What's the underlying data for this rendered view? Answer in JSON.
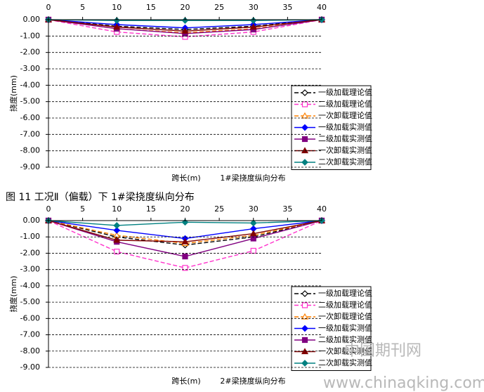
{
  "caption": "图 11 工况Ⅱ（偏载）下 1#梁挠度纵向分布",
  "watermark": [
    "中国期刊网",
    "www.chinaqking.com"
  ],
  "chart_data": [
    {
      "type": "line",
      "x_label": "跨长(m)",
      "subtitle": "1#梁挠度纵向分布",
      "y_label": "挠度(mm)",
      "x": [
        0,
        10,
        20,
        30,
        40
      ],
      "xlim": [
        0,
        40
      ],
      "xticks": [
        0,
        5,
        10,
        15,
        20,
        25,
        30,
        35,
        40
      ],
      "ylim": [
        -9,
        0
      ],
      "yticks": [
        {
          "value": 0,
          "label": "0.00"
        },
        {
          "value": -1,
          "label": "-1.00"
        },
        {
          "value": -2,
          "label": "-2.00"
        },
        {
          "value": -3,
          "label": "-3.00"
        },
        {
          "value": -4,
          "label": "-4.00"
        },
        {
          "value": -5,
          "label": "-5.00"
        },
        {
          "value": -6,
          "label": "-6.00"
        },
        {
          "value": -7,
          "label": "-7.00"
        },
        {
          "value": -8,
          "label": "-8.00"
        },
        {
          "value": -9,
          "label": "-9.00"
        }
      ],
      "grid": true,
      "legend": "lower right",
      "series": [
        {
          "name": "一级加载理论值",
          "color": "#000000",
          "dashed": true,
          "marker": "diamond-open",
          "values": [
            0,
            -0.4,
            -0.6,
            -0.4,
            0
          ]
        },
        {
          "name": "二级加载理论值",
          "color": "#ff33cc",
          "dashed": true,
          "marker": "square-open",
          "values": [
            0,
            -0.75,
            -1.05,
            -0.75,
            0
          ]
        },
        {
          "name": "一次卸载理论值",
          "color": "#ff8000",
          "dashed": true,
          "marker": "triangle-open",
          "values": [
            0,
            -0.55,
            -0.8,
            -0.55,
            0
          ]
        },
        {
          "name": "一级加载实测值",
          "color": "#0000ff",
          "dashed": false,
          "marker": "diamond",
          "values": [
            0,
            -0.3,
            -0.5,
            -0.3,
            0
          ]
        },
        {
          "name": "二级加载实测值",
          "color": "#800080",
          "dashed": false,
          "marker": "square",
          "values": [
            0,
            -0.55,
            -0.85,
            -0.6,
            0
          ]
        },
        {
          "name": "一次卸载实测值",
          "color": "#800000",
          "dashed": false,
          "marker": "triangle",
          "values": [
            0,
            -0.45,
            -0.7,
            -0.45,
            0
          ]
        },
        {
          "name": "二次卸载实测值",
          "color": "#008080",
          "dashed": false,
          "marker": "diamond",
          "values": [
            0,
            -0.05,
            -0.05,
            -0.05,
            0
          ]
        }
      ]
    },
    {
      "type": "line",
      "x_label": "跨长(m)",
      "subtitle": "2#梁挠度纵向分布",
      "y_label": "挠度(mm)",
      "x": [
        0,
        10,
        20,
        30,
        40
      ],
      "xlim": [
        0,
        40
      ],
      "xticks": [
        0,
        5,
        10,
        15,
        20,
        25,
        30,
        35,
        40
      ],
      "ylim": [
        -9,
        0
      ],
      "yticks": [
        {
          "value": 0,
          "label": "0.00"
        },
        {
          "value": -1,
          "label": "-1.00"
        },
        {
          "value": -2,
          "label": "-2.00"
        },
        {
          "value": -3,
          "label": "-3.00"
        },
        {
          "value": -4,
          "label": "-4.00"
        },
        {
          "value": -5,
          "label": "-5.00"
        },
        {
          "value": -6,
          "label": "-6.00"
        },
        {
          "value": -7,
          "label": "-7.00"
        },
        {
          "value": -8,
          "label": "-8.00"
        },
        {
          "value": -9,
          "label": "-9.00"
        }
      ],
      "grid": true,
      "legend": "lower right",
      "series": [
        {
          "name": "一级加载理论值",
          "color": "#000000",
          "dashed": true,
          "marker": "diamond-open",
          "values": [
            0,
            -1.0,
            -1.5,
            -1.0,
            0
          ]
        },
        {
          "name": "二级加载理论值",
          "color": "#ff33cc",
          "dashed": true,
          "marker": "square-open",
          "values": [
            0,
            -1.9,
            -2.9,
            -1.85,
            0
          ]
        },
        {
          "name": "一次卸载理论值",
          "color": "#ff8000",
          "dashed": true,
          "marker": "triangle-open",
          "values": [
            0,
            -0.9,
            -1.4,
            -0.9,
            0
          ]
        },
        {
          "name": "一级加载实测值",
          "color": "#0000ff",
          "dashed": false,
          "marker": "diamond",
          "values": [
            0,
            -0.6,
            -1.1,
            -0.5,
            0
          ]
        },
        {
          "name": "二级加载实测值",
          "color": "#800080",
          "dashed": false,
          "marker": "square",
          "values": [
            0,
            -1.3,
            -2.2,
            -1.1,
            0
          ]
        },
        {
          "name": "一次卸载实测值",
          "color": "#800000",
          "dashed": false,
          "marker": "triangle",
          "values": [
            0,
            -1.2,
            -1.3,
            -0.8,
            0
          ]
        },
        {
          "name": "二次卸载实测值",
          "color": "#008080",
          "dashed": false,
          "marker": "diamond",
          "values": [
            0,
            -0.3,
            -0.1,
            -0.15,
            0
          ]
        }
      ]
    }
  ]
}
